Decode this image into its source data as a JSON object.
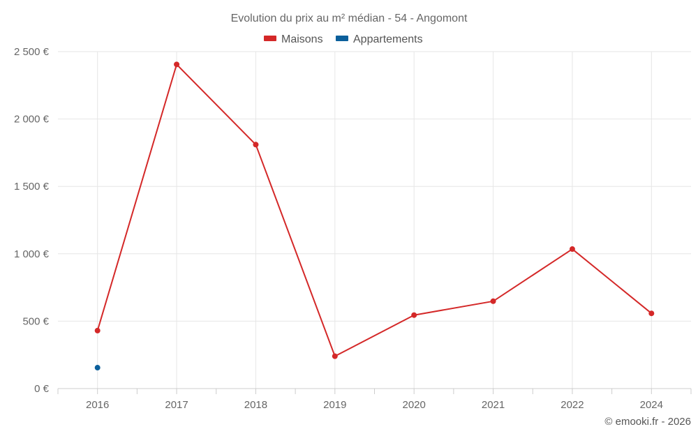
{
  "chart_data": {
    "type": "line",
    "title": "Evolution du prix au m² médian - 54 - Angomont",
    "categories": [
      "2016",
      "2017",
      "2018",
      "2019",
      "2020",
      "2021",
      "2022",
      "2024"
    ],
    "ylim": [
      0,
      2500
    ],
    "yticks": [
      0,
      500,
      1000,
      1500,
      2000,
      2500
    ],
    "ytick_labels": [
      "0 €",
      "500 €",
      "1 000 €",
      "1 500 €",
      "2 000 €",
      "2 500 €"
    ],
    "grid": true,
    "legend_position": "top-center",
    "series": [
      {
        "name": "Maisons",
        "color": "#d42828",
        "values": [
          430,
          2405,
          1810,
          240,
          545,
          648,
          1035,
          558
        ]
      },
      {
        "name": "Appartements",
        "color": "#0b5f9b",
        "values": [
          155,
          null,
          null,
          null,
          null,
          null,
          null,
          null
        ]
      }
    ]
  },
  "credit": "© emooki.fr - 2026"
}
